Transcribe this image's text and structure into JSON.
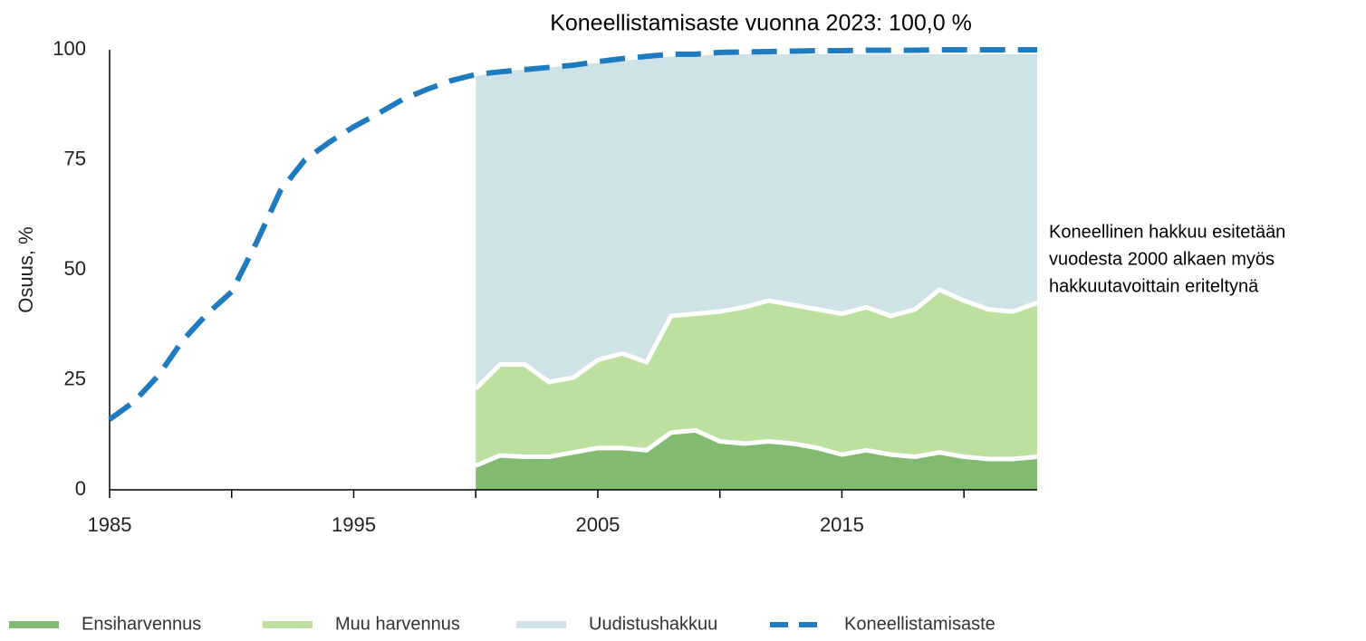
{
  "chart_data": {
    "type": "area",
    "stacked": true,
    "title": "Koneellistamisaste vuonna 2023:  100,0 %",
    "y_label": "Osuus, %",
    "annotation": [
      "Koneellinen hakkuu esitetään",
      "vuodesta 2000 alkaen myös",
      "hakkuutavoittain eriteltynä"
    ],
    "x": [
      1985,
      1986,
      1987,
      1988,
      1989,
      1990,
      1991,
      1992,
      1993,
      1994,
      1995,
      1996,
      1997,
      1998,
      1999,
      2000,
      2001,
      2002,
      2003,
      2004,
      2005,
      2006,
      2007,
      2008,
      2009,
      2010,
      2011,
      2012,
      2013,
      2014,
      2015,
      2016,
      2017,
      2018,
      2019,
      2020,
      2021,
      2022,
      2023
    ],
    "xlim": [
      1985,
      2023
    ],
    "xticks": [
      1985,
      1995,
      2005,
      2015
    ],
    "xminorticks": [
      1990,
      2000,
      2010,
      2020
    ],
    "ylim": [
      0,
      100
    ],
    "yticks": [
      0,
      25,
      50,
      75,
      100
    ],
    "legend": "bottom",
    "series": [
      {
        "name": "Ensiharvennus",
        "color": "#82bb6f",
        "type": "area",
        "values": [
          null,
          null,
          null,
          null,
          null,
          null,
          null,
          null,
          null,
          null,
          null,
          null,
          null,
          null,
          null,
          5.5,
          7.8,
          7.5,
          7.5,
          8.5,
          9.5,
          9.5,
          9,
          13,
          13.5,
          11,
          10.5,
          11,
          10.5,
          9.5,
          8,
          9,
          8,
          7.5,
          8.5,
          7.5,
          7,
          7,
          7.5
        ]
      },
      {
        "name": "Muu harvennus",
        "color": "#bde0a0",
        "type": "area",
        "values": [
          null,
          null,
          null,
          null,
          null,
          null,
          null,
          null,
          null,
          null,
          null,
          null,
          null,
          null,
          null,
          17.5,
          20.7,
          21,
          17,
          17,
          20,
          21.5,
          20,
          26.5,
          26.5,
          29.5,
          31,
          32,
          31.5,
          31.5,
          32,
          32.5,
          31.5,
          33.5,
          37,
          35.5,
          34,
          33.5,
          35
        ]
      },
      {
        "name": "Uudistushakkuu",
        "color": "#cfe2e8",
        "type": "area",
        "values": [
          null,
          null,
          null,
          null,
          null,
          null,
          null,
          null,
          null,
          null,
          null,
          null,
          null,
          null,
          null,
          71,
          66.5,
          67,
          71.5,
          71,
          67.5,
          66.5,
          69,
          59,
          58.5,
          58.5,
          57.5,
          56,
          57,
          58,
          59,
          57.5,
          59.5,
          58,
          53.5,
          56,
          58,
          58.5,
          56.5
        ]
      },
      {
        "name": "Koneellistamisaste",
        "color": "#1f7bbf",
        "type": "line",
        "dashed": true,
        "values": [
          16,
          20,
          26,
          34,
          40,
          45,
          56,
          68,
          75,
          79,
          82.5,
          85.5,
          88.7,
          91,
          93,
          94.4,
          95,
          95.5,
          96,
          96.5,
          97.3,
          98,
          98.5,
          99,
          99,
          99.4,
          99.5,
          99.6,
          99.7,
          99.8,
          99.8,
          99.9,
          99.9,
          99.9,
          100,
          100,
          100,
          100,
          100
        ]
      }
    ]
  }
}
